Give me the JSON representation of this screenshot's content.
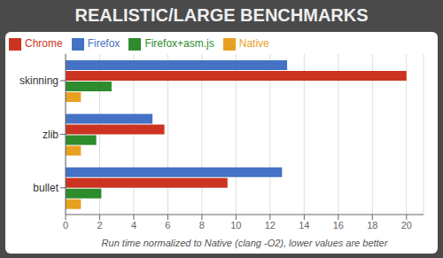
{
  "chart_data": {
    "type": "bar",
    "orientation": "horizontal",
    "title": "REALISTIC/LARGE BENCHMARKS",
    "xlabel": "Run time normalized to Native (clang -O2), lower values are better",
    "categories": [
      "skinning",
      "zlib",
      "bullet"
    ],
    "series": [
      {
        "name": "Firefox",
        "color": "#4472C4",
        "values": [
          13.0,
          5.1,
          12.7
        ]
      },
      {
        "name": "Chrome",
        "color": "#CC3320",
        "values": [
          20.0,
          5.8,
          9.5
        ]
      },
      {
        "name": "Firefox+asm.js",
        "color": "#2E8B2E",
        "values": [
          2.7,
          1.8,
          2.1
        ]
      },
      {
        "name": "Native",
        "color": "#E8A020",
        "values": [
          0.9,
          0.9,
          0.9
        ]
      }
    ],
    "xlim": [
      0,
      21
    ],
    "xticks": [
      0,
      2,
      4,
      6,
      8,
      10,
      12,
      14,
      16,
      18,
      20
    ],
    "grid": true,
    "legend": "upper left"
  }
}
